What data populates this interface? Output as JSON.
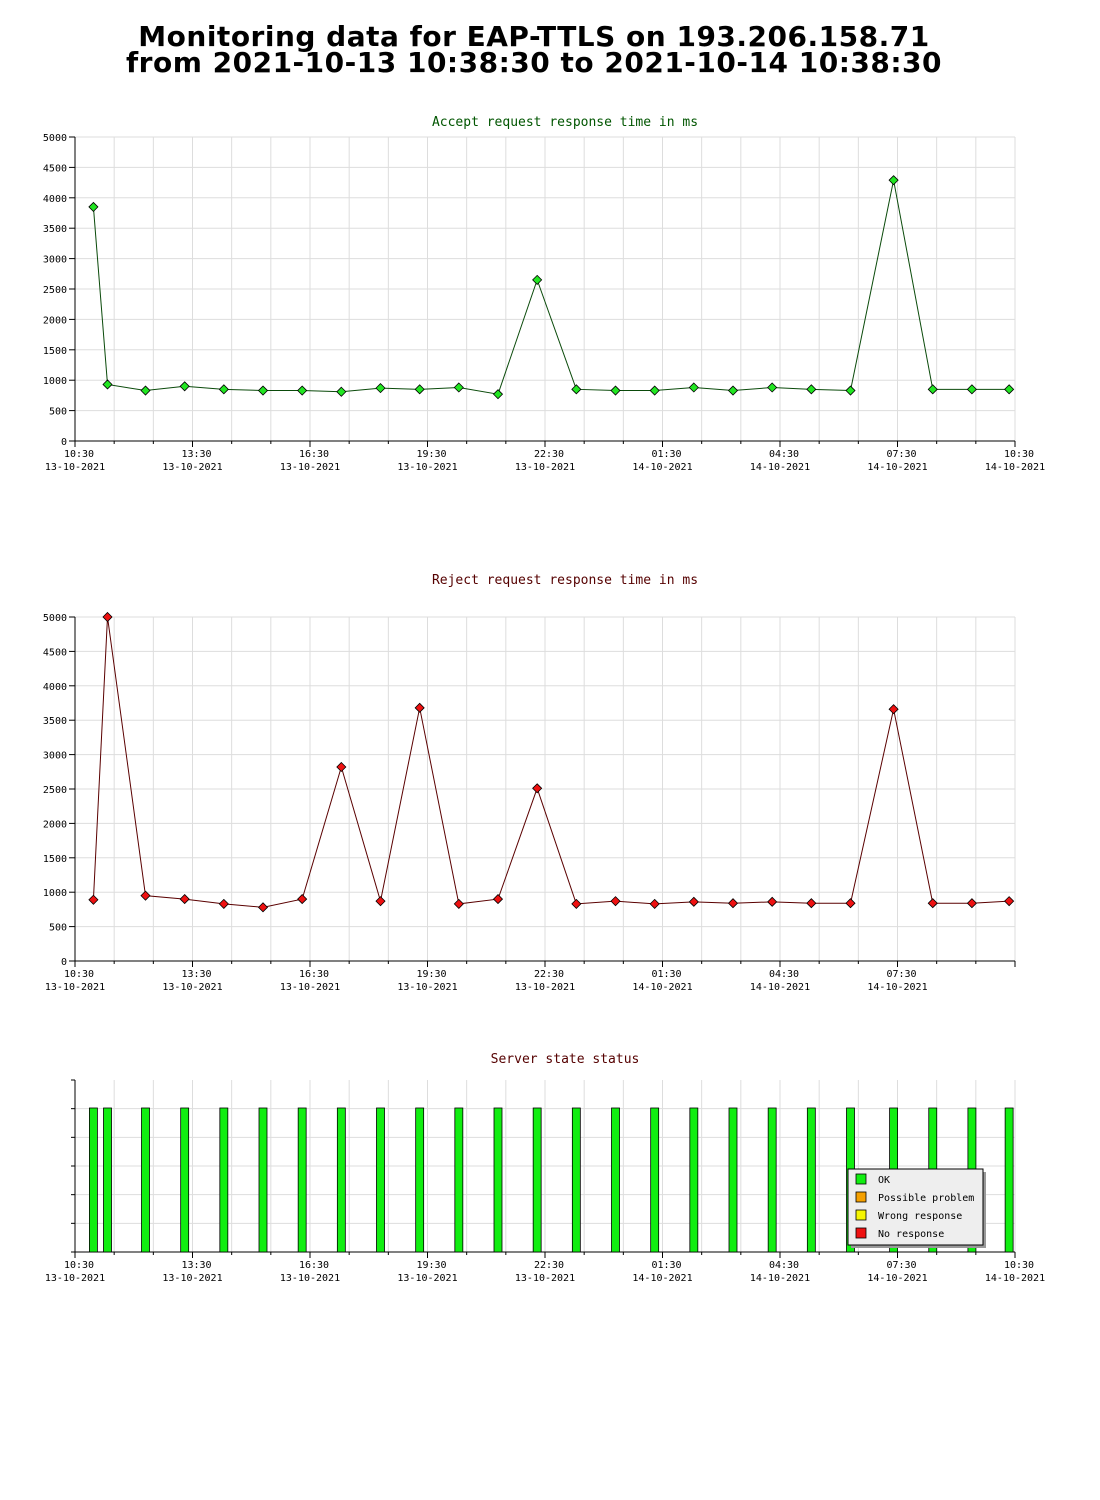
{
  "page": {
    "title_line1": "Monitoring data for EAP-TTLS on 193.206.158.71",
    "title_line2": "from 2021-10-13 10:38:30 to 2021-10-14 10:38:30"
  },
  "colors": {
    "accept_line": "#0a4a0a",
    "accept_marker": "#22e622",
    "reject_line": "#5a0000",
    "reject_marker": "#ee1111",
    "ok": "#11ee11",
    "possible_problem": "#f5a000",
    "wrong_response": "#f5f500",
    "no_response": "#ee1111",
    "grid": "#dddddd"
  },
  "chart_data": [
    {
      "type": "line",
      "title": "Accept request response time in ms",
      "title_color": "#005500",
      "ylim": [
        0,
        5000
      ],
      "yticks": [
        0,
        500,
        1000,
        1500,
        2000,
        2500,
        3000,
        3500,
        4000,
        4500,
        5000
      ],
      "xlim": [
        0,
        24
      ],
      "xtick_positions": [
        0,
        3,
        6,
        9,
        12,
        15,
        18,
        21,
        24
      ],
      "xtick_labels": [
        [
          "10:30",
          "13-10-2021"
        ],
        [
          "13:30",
          "13-10-2021"
        ],
        [
          "16:30",
          "13-10-2021"
        ],
        [
          "19:30",
          "13-10-2021"
        ],
        [
          "22:30",
          "13-10-2021"
        ],
        [
          "01:30",
          "14-10-2021"
        ],
        [
          "04:30",
          "14-10-2021"
        ],
        [
          "07:30",
          "14-10-2021"
        ],
        [
          "10:30",
          "14-10-2021"
        ]
      ],
      "x": [
        0.47,
        0.83,
        1.8,
        2.8,
        3.8,
        4.8,
        5.8,
        6.8,
        7.8,
        8.8,
        9.8,
        10.8,
        11.8,
        12.8,
        13.8,
        14.8,
        15.8,
        16.8,
        17.8,
        18.8,
        19.8,
        20.9,
        21.9,
        22.9,
        23.85
      ],
      "values": [
        3850,
        930,
        830,
        900,
        850,
        830,
        830,
        810,
        870,
        850,
        880,
        770,
        2650,
        850,
        830,
        830,
        880,
        830,
        880,
        850,
        830,
        4290,
        850,
        850,
        850
      ]
    },
    {
      "type": "line",
      "title": "Reject request response time in ms",
      "title_color": "#550000",
      "ylim": [
        0,
        5000
      ],
      "yticks": [
        0,
        500,
        1000,
        1500,
        2000,
        2500,
        3000,
        3500,
        4000,
        4500,
        5000
      ],
      "xlim": [
        0,
        24
      ],
      "xtick_positions": [
        0,
        3,
        6,
        9,
        12,
        15,
        18,
        21
      ],
      "xtick_labels": [
        [
          "10:30",
          "13-10-2021"
        ],
        [
          "13:30",
          "13-10-2021"
        ],
        [
          "16:30",
          "13-10-2021"
        ],
        [
          "19:30",
          "13-10-2021"
        ],
        [
          "22:30",
          "13-10-2021"
        ],
        [
          "01:30",
          "14-10-2021"
        ],
        [
          "04:30",
          "14-10-2021"
        ],
        [
          "07:30",
          "14-10-2021"
        ]
      ],
      "x": [
        0.47,
        0.83,
        1.8,
        2.8,
        3.8,
        4.8,
        5.8,
        6.8,
        7.8,
        8.8,
        9.8,
        10.8,
        11.8,
        12.8,
        13.8,
        14.8,
        15.8,
        16.8,
        17.8,
        18.8,
        19.8,
        20.9,
        21.9,
        22.9,
        23.85
      ],
      "values": [
        890,
        5000,
        950,
        900,
        830,
        780,
        900,
        2820,
        870,
        3680,
        830,
        900,
        2510,
        830,
        870,
        830,
        860,
        840,
        860,
        840,
        840,
        3660,
        840,
        840,
        870
      ]
    },
    {
      "type": "bar",
      "title": "Server state status",
      "title_color": "#550000",
      "xlim": [
        0,
        24
      ],
      "xtick_positions": [
        0,
        3,
        6,
        9,
        12,
        15,
        18,
        21,
        24
      ],
      "xtick_labels": [
        [
          "10:30",
          "13-10-2021"
        ],
        [
          "13:30",
          "13-10-2021"
        ],
        [
          "16:30",
          "13-10-2021"
        ],
        [
          "19:30",
          "13-10-2021"
        ],
        [
          "22:30",
          "13-10-2021"
        ],
        [
          "01:30",
          "14-10-2021"
        ],
        [
          "04:30",
          "14-10-2021"
        ],
        [
          "07:30",
          "14-10-2021"
        ],
        [
          "10:30",
          "14-10-2021"
        ]
      ],
      "x": [
        0.47,
        0.83,
        1.8,
        2.8,
        3.8,
        4.8,
        5.8,
        6.8,
        7.8,
        8.8,
        9.8,
        10.8,
        11.8,
        12.8,
        13.8,
        14.8,
        15.8,
        16.8,
        17.8,
        18.8,
        19.8,
        20.9,
        21.9,
        22.9,
        23.85
      ],
      "states": [
        "OK",
        "OK",
        "OK",
        "OK",
        "OK",
        "OK",
        "OK",
        "OK",
        "OK",
        "OK",
        "OK",
        "OK",
        "OK",
        "OK",
        "OK",
        "OK",
        "OK",
        "OK",
        "OK",
        "OK",
        "OK",
        "OK",
        "OK",
        "OK",
        "OK"
      ],
      "legend_position": "bottom-right",
      "legend": [
        {
          "label": "OK",
          "color_key": "ok"
        },
        {
          "label": "Possible problem",
          "color_key": "possible_problem"
        },
        {
          "label": "Wrong response",
          "color_key": "wrong_response"
        },
        {
          "label": "No response",
          "color_key": "no_response"
        }
      ]
    }
  ]
}
